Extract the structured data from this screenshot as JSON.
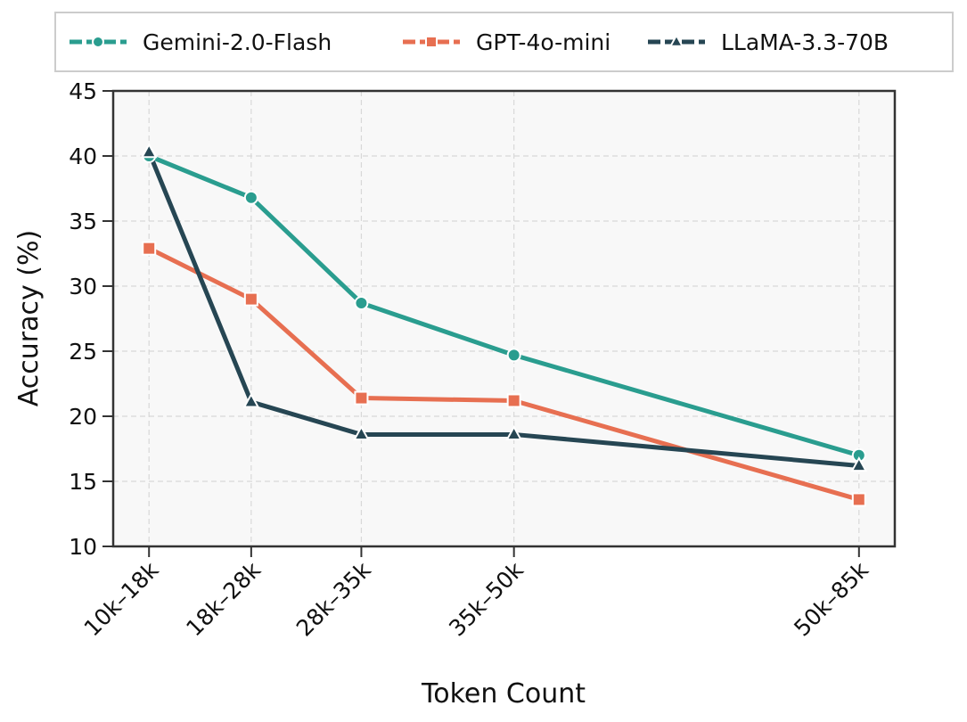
{
  "chart_data": {
    "type": "line",
    "x_label": "Token Count",
    "y_label": "Accuracy (%)",
    "x": [
      14,
      21.7,
      30,
      41.5,
      67.5
    ],
    "xlim": [
      11.3,
      70.2
    ],
    "xticks": [
      {
        "value": 14,
        "label": "10k–18k"
      },
      {
        "value": 21.7,
        "label": "18k–28k"
      },
      {
        "value": 30,
        "label": "28k–35k"
      },
      {
        "value": 41.5,
        "label": "35k–50k"
      },
      {
        "value": 67.5,
        "label": "50k–85k"
      }
    ],
    "ylim": [
      10,
      45
    ],
    "yticks": [
      10,
      15,
      20,
      25,
      30,
      35,
      40,
      45
    ],
    "grid": true,
    "legend": "top",
    "series": [
      {
        "name": "Gemini-2.0-Flash",
        "color": "#2a9d8f",
        "marker": "circle",
        "values": [
          40,
          36.8,
          28.7,
          24.7,
          17.0
        ]
      },
      {
        "name": "GPT-4o-mini",
        "color": "#e76f51",
        "marker": "square",
        "values": [
          32.9,
          29,
          21.4,
          21.2,
          13.6
        ]
      },
      {
        "name": "LLaMA-3.3-70B",
        "color": "#264653",
        "marker": "triangle",
        "values": [
          40.3,
          21.1,
          18.6,
          18.6,
          16.2
        ]
      }
    ]
  }
}
